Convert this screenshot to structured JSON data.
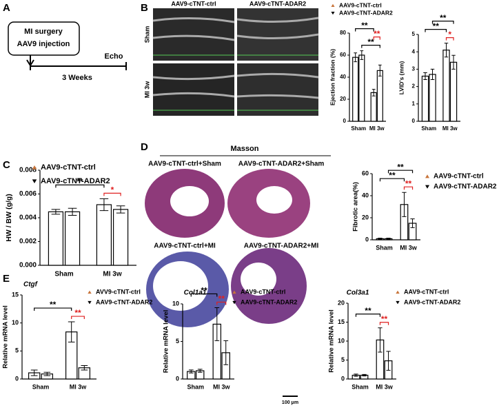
{
  "panel_labels": [
    "A",
    "B",
    "C",
    "D",
    "E"
  ],
  "diagram": {
    "step1": "MI surgery",
    "step2": "AAV9 injection",
    "end": "Echo",
    "duration": "3 Weeks"
  },
  "echo": {
    "columns": [
      "AAV9-cTNT-ctrl",
      "AAV9-cTNT-ADAR2"
    ],
    "rows": [
      "Sham",
      "MI 3w"
    ]
  },
  "masson": {
    "title": "Masson",
    "images": [
      "AAV9-cTNT-ctrl+Sham",
      "AAV9-cTNT-ADAR2+Sham",
      "AAV9-cTNT-ctrl+MI",
      "AAV9-cTNT-ADAR2+MI"
    ],
    "scale": "100 μm"
  },
  "chart_data": [
    {
      "type": "bar",
      "ylabel": "Ejection fraction (%)",
      "categories": [
        "Sham",
        "MI 3w"
      ],
      "series": [
        {
          "name": "AAV9-cTNT-ctrl",
          "color": "#c8743a",
          "values": [
            58,
            26
          ],
          "errors": [
            4,
            3
          ]
        },
        {
          "name": "AAV9-cTNT-ADAR2",
          "color": "#000000",
          "values": [
            60,
            46
          ],
          "errors": [
            4,
            5
          ]
        }
      ],
      "ylim": [
        0,
        80
      ],
      "yticks": [
        0,
        20,
        40,
        60,
        80
      ],
      "brackets": [
        {
          "from": [
            0,
            0
          ],
          "to": [
            1,
            0
          ],
          "text": "**",
          "color": "#000000"
        },
        {
          "from": [
            1,
            0
          ],
          "to": [
            1,
            1
          ],
          "text": "**",
          "color": "#e02020"
        },
        {
          "from": [
            0,
            1
          ],
          "to": [
            1,
            1
          ],
          "text": "**",
          "color": "#000000"
        }
      ]
    },
    {
      "type": "bar",
      "ylabel": "LVID's (mm)",
      "categories": [
        "Sham",
        "MI 3w"
      ],
      "series": [
        {
          "color": "#c8743a",
          "values": [
            2.6,
            4.1
          ],
          "errors": [
            0.2,
            0.4
          ]
        },
        {
          "color": "#000000",
          "values": [
            2.7,
            3.4
          ],
          "errors": [
            0.3,
            0.4
          ]
        }
      ],
      "ylim": [
        0,
        5
      ],
      "yticks": [
        0,
        1,
        2,
        3,
        4,
        5
      ],
      "brackets": [
        {
          "from": [
            0,
            1
          ],
          "to": [
            1,
            1
          ],
          "text": "**",
          "color": "#000000"
        },
        {
          "from": [
            0,
            0
          ],
          "to": [
            1,
            0
          ],
          "text": "**",
          "color": "#000000"
        },
        {
          "from": [
            1,
            0
          ],
          "to": [
            1,
            1
          ],
          "text": "*",
          "color": "#e02020"
        }
      ]
    },
    {
      "type": "bar",
      "ylabel": "HW / BW (g/g)",
      "categories": [
        "Sham",
        "MI 3w"
      ],
      "series": [
        {
          "name": "AAV9-cTNT-ctrl",
          "color": "#c8743a",
          "values": [
            0.0045,
            0.0051
          ],
          "errors": [
            0.0002,
            0.0005
          ]
        },
        {
          "name": "AAV9-cTNT-ADAR2",
          "color": "#000000",
          "values": [
            0.0045,
            0.0047
          ],
          "errors": [
            0.0003,
            0.0003
          ]
        }
      ],
      "ylim": [
        0,
        0.008
      ],
      "yticks": [
        {
          "value": 0,
          "label": "0.000"
        },
        {
          "value": 0.002,
          "label": "0.002"
        },
        {
          "value": 0.004,
          "label": "0.004"
        },
        {
          "value": 0.006,
          "label": "0.006"
        },
        {
          "value": 0.008,
          "label": "0.008"
        }
      ],
      "brackets": [
        {
          "from": [
            0,
            0
          ],
          "to": [
            1,
            0
          ],
          "text": "**",
          "color": "#000000"
        },
        {
          "from": [
            1,
            0
          ],
          "to": [
            1,
            1
          ],
          "text": "*",
          "color": "#e02020"
        }
      ]
    },
    {
      "type": "bar",
      "ylabel": "Fibrotic area(%)",
      "categories": [
        "Sham",
        "MI 3w"
      ],
      "series": [
        {
          "name": "AAV9-cTNT-ctrl",
          "color": "#c8743a",
          "values": [
            1,
            32
          ],
          "errors": [
            0.5,
            11
          ]
        },
        {
          "name": "AAV9-cTNT-ADAR2",
          "color": "#000000",
          "values": [
            1,
            15
          ],
          "errors": [
            0.5,
            4
          ]
        }
      ],
      "ylim": [
        0,
        60
      ],
      "yticks": [
        0,
        20,
        40,
        60
      ],
      "brackets": [
        {
          "from": [
            0,
            1
          ],
          "to": [
            1,
            1
          ],
          "text": "**",
          "color": "#000000"
        },
        {
          "from": [
            0,
            0
          ],
          "to": [
            1,
            0
          ],
          "text": "**",
          "color": "#000000"
        },
        {
          "from": [
            1,
            0
          ],
          "to": [
            1,
            1
          ],
          "text": "**",
          "color": "#e02020"
        }
      ]
    },
    {
      "type": "bar",
      "title": "Ctgf",
      "ylabel": "Relative mRNA level",
      "categories": [
        "Sham",
        "MI 3w"
      ],
      "series": [
        {
          "name": "AVV9-cTNT-ctrl",
          "color": "#c8743a",
          "values": [
            1.1,
            8.4
          ],
          "errors": [
            0.5,
            1.8
          ]
        },
        {
          "name": "AAV9-cTNT-ADAR2",
          "color": "#000000",
          "values": [
            0.9,
            2.0
          ],
          "errors": [
            0.3,
            0.4
          ]
        }
      ],
      "ylim": [
        0,
        15
      ],
      "yticks": [
        0,
        5,
        10,
        15
      ],
      "brackets": [
        {
          "from": [
            0,
            0
          ],
          "to": [
            1,
            0
          ],
          "text": "**",
          "color": "#000000"
        },
        {
          "from": [
            1,
            0
          ],
          "to": [
            1,
            1
          ],
          "text": "**",
          "color": "#e02020"
        }
      ]
    },
    {
      "type": "bar",
      "title": "Col1a1",
      "ylabel": "Relative mRNA level",
      "categories": [
        "Sham",
        "MI 3w"
      ],
      "series": [
        {
          "name": "AAV9-cTNT-ctrl",
          "color": "#c8743a",
          "values": [
            1.0,
            7.3
          ],
          "errors": [
            0.2,
            2.2
          ]
        },
        {
          "name": "AAV9-cTNT-ADAR2",
          "color": "#000000",
          "values": [
            1.1,
            3.5
          ],
          "errors": [
            0.2,
            1.6
          ]
        }
      ],
      "ylim": [
        0,
        10
      ],
      "yticks": [
        0,
        5,
        10
      ],
      "brackets": [
        {
          "from": [
            0,
            0
          ],
          "to": [
            1,
            0
          ],
          "text": "**",
          "color": "#000000"
        },
        {
          "from": [
            1,
            0
          ],
          "to": [
            1,
            1
          ],
          "text": "**",
          "color": "#e02020"
        }
      ]
    },
    {
      "type": "bar",
      "title": "Col3a1",
      "ylabel": "Relative mRNA level",
      "categories": [
        "Sham",
        "MI 3w"
      ],
      "series": [
        {
          "name": "AAV9-cTNT-ctrl",
          "color": "#c8743a",
          "values": [
            1.0,
            10.3
          ],
          "errors": [
            0.3,
            3.2
          ]
        },
        {
          "name": "AAV9-cTNT-ADAR2",
          "color": "#000000",
          "values": [
            1.0,
            4.8
          ],
          "errors": [
            0.2,
            2.5
          ]
        }
      ],
      "ylim": [
        0,
        20
      ],
      "yticks": [
        0,
        5,
        10,
        15,
        20
      ],
      "brackets": [
        {
          "from": [
            0,
            0
          ],
          "to": [
            1,
            0
          ],
          "text": "**",
          "color": "#000000"
        },
        {
          "from": [
            1,
            0
          ],
          "to": [
            1,
            1
          ],
          "text": "**",
          "color": "#e02020"
        }
      ]
    }
  ]
}
